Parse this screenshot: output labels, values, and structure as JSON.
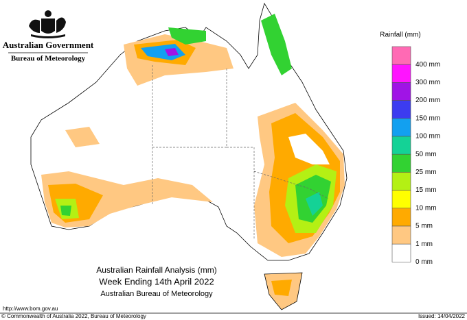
{
  "header": {
    "government": "Australian Government",
    "bureau": "Bureau of Meteorology"
  },
  "legend": {
    "title": "Rainfall (mm)",
    "items": [
      {
        "label": "400 mm",
        "color": "#ff6ab4"
      },
      {
        "label": "300 mm",
        "color": "#ff14ff"
      },
      {
        "label": "200 mm",
        "color": "#a014e6"
      },
      {
        "label": "150 mm",
        "color": "#3c3cf0"
      },
      {
        "label": "100 mm",
        "color": "#12a0f0"
      },
      {
        "label": "50 mm",
        "color": "#14d296"
      },
      {
        "label": "25 mm",
        "color": "#32d232"
      },
      {
        "label": "15 mm",
        "color": "#b4f014"
      },
      {
        "label": "10 mm",
        "color": "#ffff00"
      },
      {
        "label": "5 mm",
        "color": "#ffaa00"
      },
      {
        "label": "1 mm",
        "color": "#ffc882"
      },
      {
        "label": "0 mm",
        "color": "#ffffff"
      }
    ]
  },
  "map_title": {
    "line1": "Australian Rainfall Analysis (mm)",
    "line2": "Week Ending 14th April 2022",
    "line3": "Australian Bureau of Meteorology"
  },
  "footer": {
    "url": "http://www.bom.gov.au",
    "copyright": "© Commonwealth of Australia 2022, Bureau of Meteorology",
    "issued": "Issued: 14/04/2022"
  }
}
